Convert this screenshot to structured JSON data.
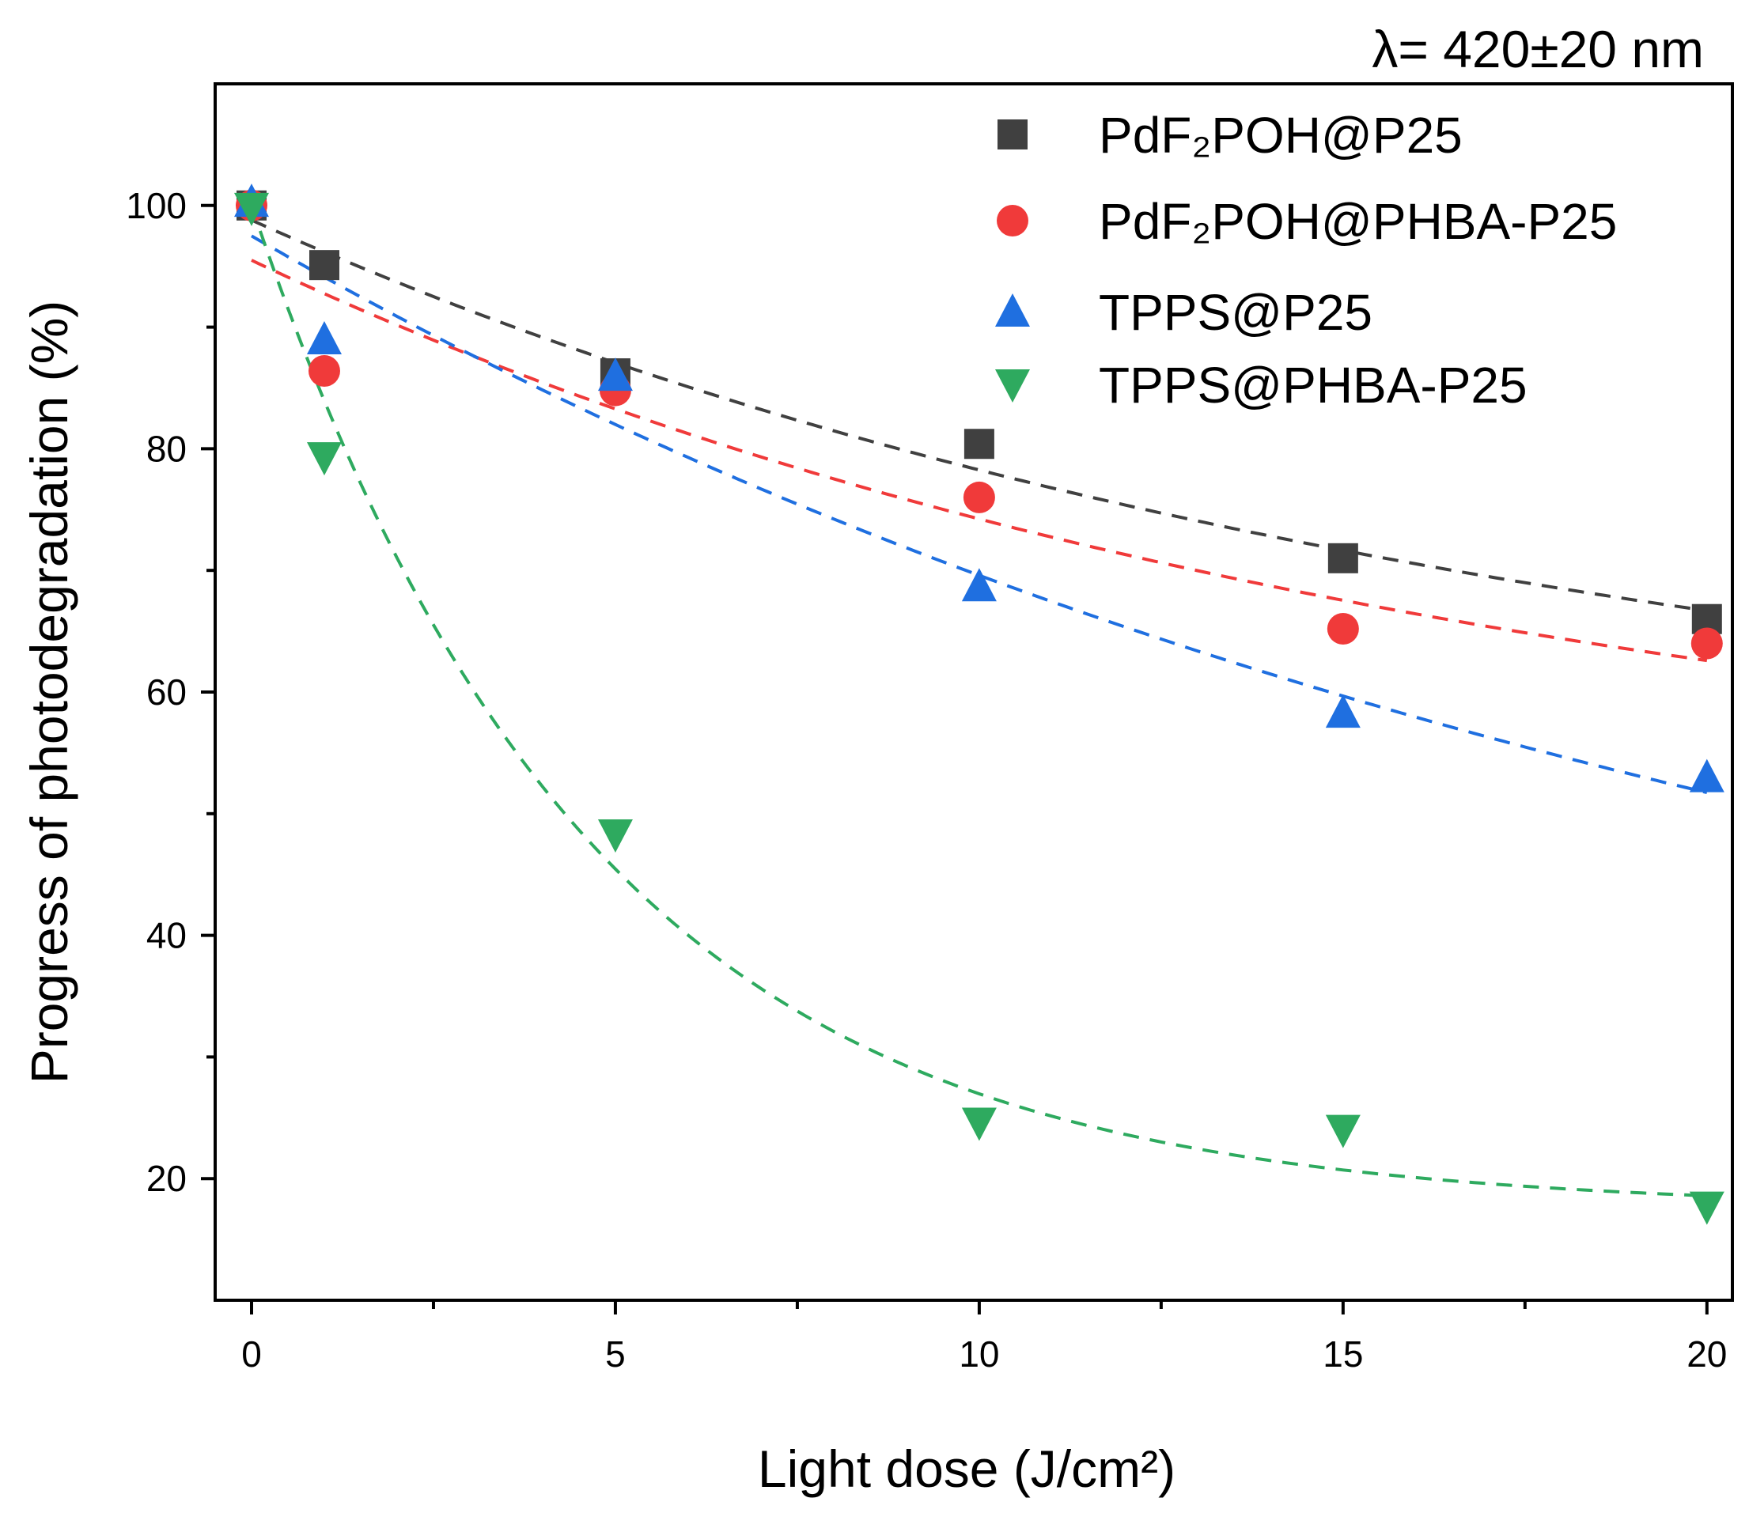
{
  "chart_data": {
    "type": "scatter",
    "title": "λ= 420±20 nm",
    "xlabel": "Light dose (J/cm²)",
    "ylabel": "Progress of photodegradation (%)",
    "xlim": [
      -0.5,
      20.35
    ],
    "ylim": [
      10,
      110
    ],
    "xticks": [
      0,
      5,
      10,
      15,
      20
    ],
    "xminor": [
      2.5,
      7.5,
      12.5,
      17.5
    ],
    "yticks": [
      20,
      40,
      60,
      80,
      100
    ],
    "yminor": [
      30,
      50,
      70,
      90
    ],
    "grid": false,
    "legend_position": "top-right",
    "x": [
      0,
      1,
      5,
      10,
      15,
      20
    ],
    "series": [
      {
        "name": "PdF₂POH@P25",
        "marker": "square",
        "color": "#404040",
        "values": [
          100,
          95.1,
          86.2,
          80.4,
          71.0,
          66.0
        ],
        "fit": {
          "type": "exp-decay",
          "y0": 51.8,
          "A": 47,
          "t": 17.4
        }
      },
      {
        "name": "PdF₂POH@PHBA-P25",
        "marker": "circle",
        "color": "#f03a3a",
        "values": [
          100,
          86.4,
          84.8,
          76.0,
          65.2,
          64.0
        ],
        "fit": {
          "type": "exp-decay",
          "y0": 48.5,
          "A": 47,
          "t": 16.6
        }
      },
      {
        "name": "TPPS@P25",
        "marker": "triangle-up",
        "color": "#1f6fe0",
        "values": [
          100.3,
          89.0,
          86.0,
          68.7,
          58.3,
          53.0
        ],
        "fit": {
          "type": "exp-decay",
          "y0": 20,
          "A": 77.5,
          "t": 22.4
        }
      },
      {
        "name": "TPPS@PHBA-P25",
        "marker": "triangle-down",
        "color": "#2eaa5f",
        "values": [
          99.8,
          79.3,
          48.3,
          24.6,
          24.0,
          17.7
        ],
        "fit": {
          "type": "exp-decay",
          "y0": 17.5,
          "A": 82.5,
          "t": 4.62
        }
      }
    ]
  }
}
